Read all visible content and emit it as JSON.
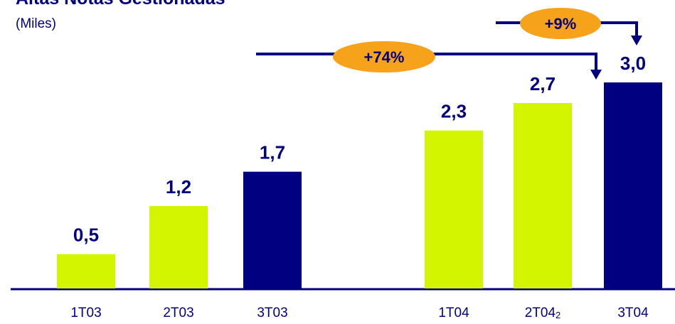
{
  "chart_data": {
    "type": "bar",
    "title": "Altas Notas Gestionadas",
    "subtitle": "(Miles)",
    "categories": [
      "1T03",
      "2T03",
      "3T03",
      "1T04",
      "2T04",
      "3T04"
    ],
    "footnote_markers": [
      null,
      null,
      null,
      null,
      "2",
      null
    ],
    "values": [
      0.5,
      1.2,
      1.7,
      2.3,
      2.7,
      3.0
    ],
    "value_labels": [
      "0,5",
      "1,2",
      "1,7",
      "2,3",
      "2,7",
      "3,0"
    ],
    "colors": [
      "#d4f500",
      "#d4f500",
      "#000080",
      "#d4f500",
      "#d4f500",
      "#000080"
    ],
    "annotations": [
      "+74%",
      "+9%"
    ]
  }
}
